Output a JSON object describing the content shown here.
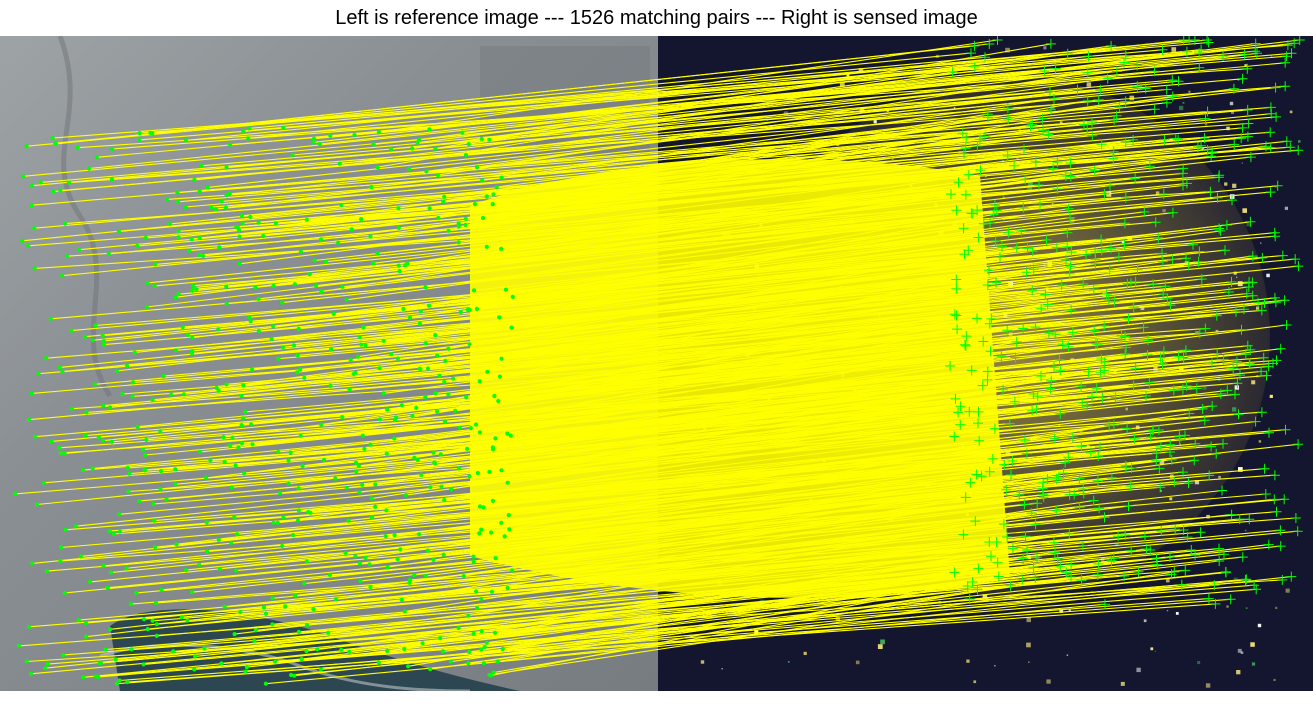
{
  "figure": {
    "title": "Left is reference image --- 1526 matching pairs --- Right is sensed image"
  },
  "panels": {
    "reference": "optical-satellite-image",
    "sensed": "night-lights-satellite-image"
  },
  "colors": {
    "background": "#ffffff",
    "match_line": "#ffff00",
    "reference_marker": "#00ff00",
    "sensed_marker": "#00ff00",
    "reference_base": "#8d9195",
    "sensed_base": "#0f1026",
    "water": "#2c4752",
    "city_light": "#f3e27a"
  },
  "markers": {
    "reference_marker": "dot",
    "sensed_marker": "plus"
  }
}
